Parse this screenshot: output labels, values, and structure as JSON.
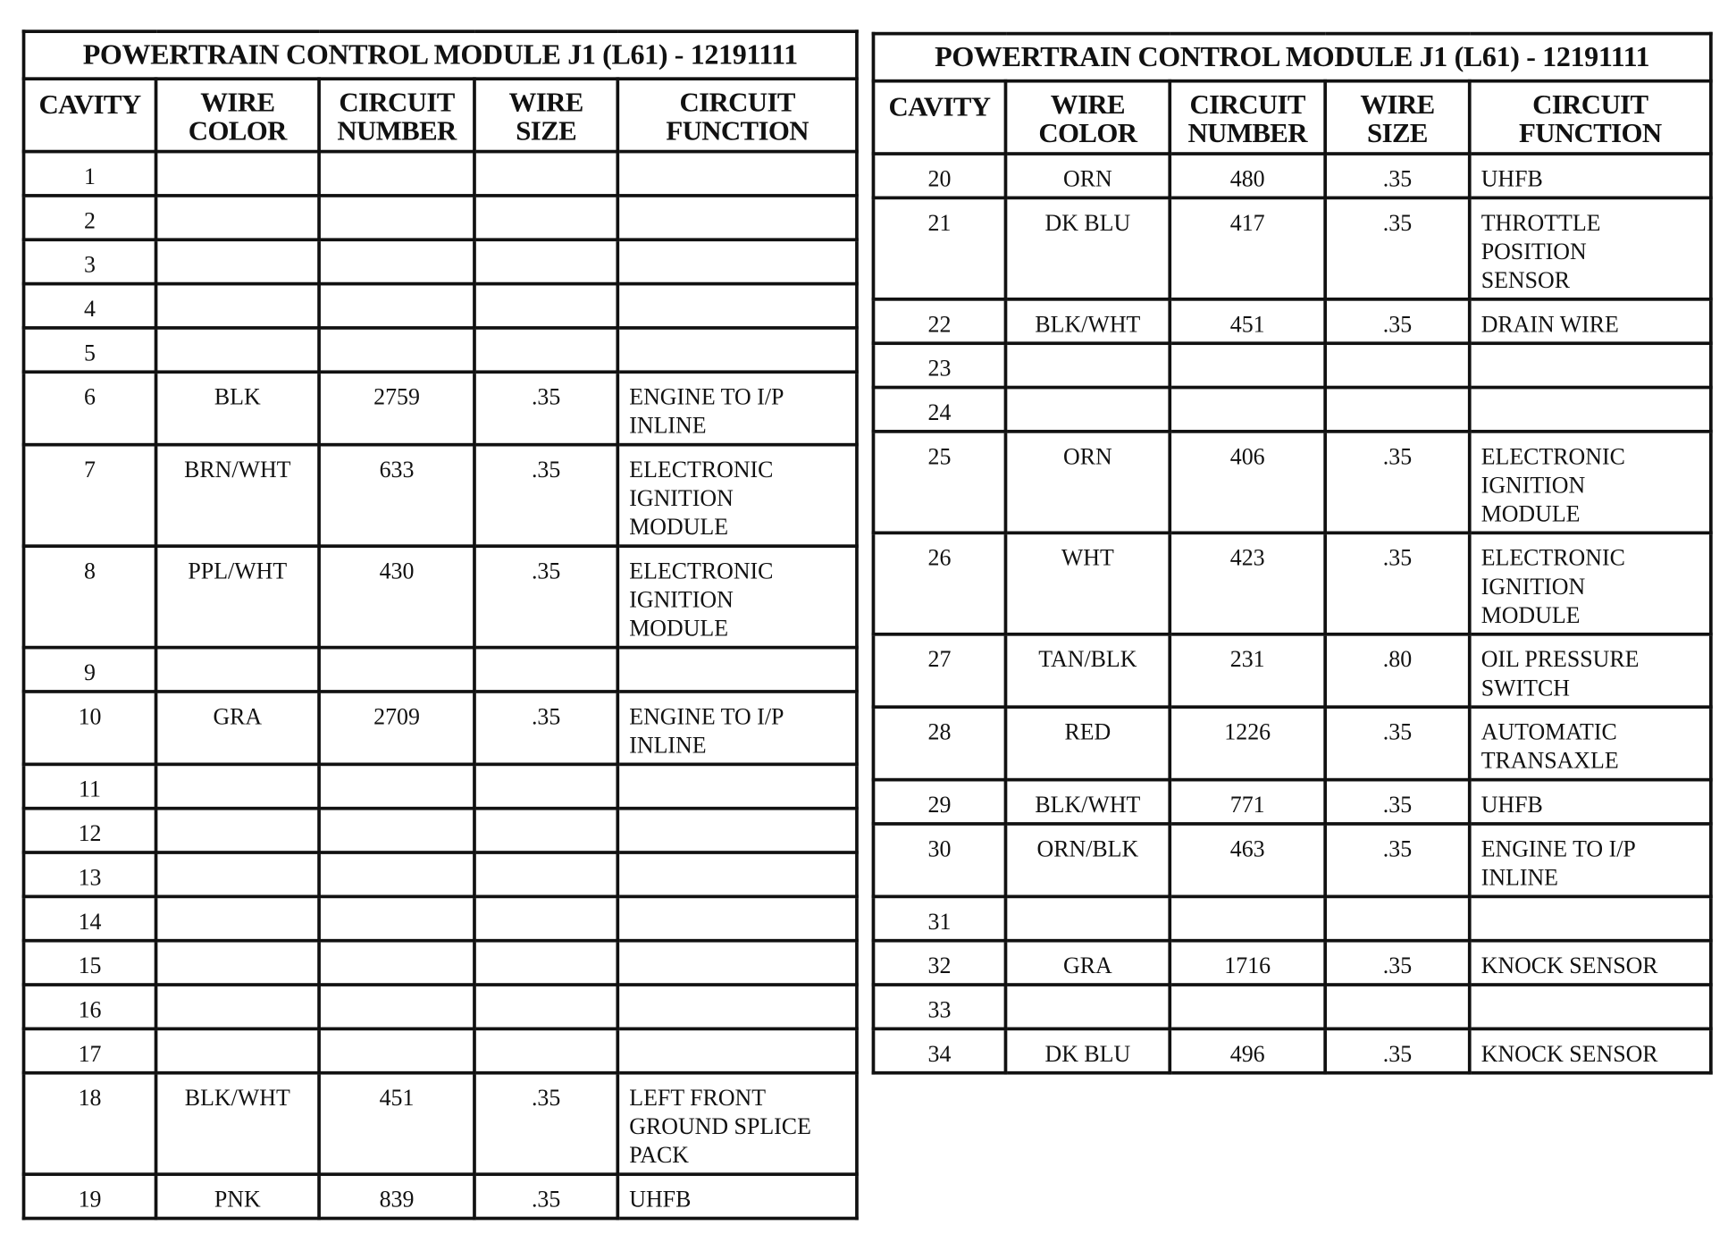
{
  "tables": [
    {
      "title": "POWERTRAIN CONTROL MODULE J1 (L61) - 12191111",
      "headers": [
        "CAVITY",
        "WIRE\nCOLOR",
        "CIRCUIT\nNUMBER",
        "WIRE\nSIZE",
        "CIRCUIT\nFUNCTION"
      ],
      "rows": [
        {
          "cavity": "1",
          "wire_color": "",
          "circuit_number": "",
          "wire_size": "",
          "circuit_function": ""
        },
        {
          "cavity": "2",
          "wire_color": "",
          "circuit_number": "",
          "wire_size": "",
          "circuit_function": ""
        },
        {
          "cavity": "3",
          "wire_color": "",
          "circuit_number": "",
          "wire_size": "",
          "circuit_function": ""
        },
        {
          "cavity": "4",
          "wire_color": "",
          "circuit_number": "",
          "wire_size": "",
          "circuit_function": ""
        },
        {
          "cavity": "5",
          "wire_color": "",
          "circuit_number": "",
          "wire_size": "",
          "circuit_function": ""
        },
        {
          "cavity": "6",
          "wire_color": "BLK",
          "circuit_number": "2759",
          "wire_size": ".35",
          "circuit_function": "ENGINE TO I/P\nINLINE"
        },
        {
          "cavity": "7",
          "wire_color": "BRN/WHT",
          "circuit_number": "633",
          "wire_size": ".35",
          "circuit_function": "ELECTRONIC\nIGNITION\nMODULE"
        },
        {
          "cavity": "8",
          "wire_color": "PPL/WHT",
          "circuit_number": "430",
          "wire_size": ".35",
          "circuit_function": "ELECTRONIC\nIGNITION\nMODULE"
        },
        {
          "cavity": "9",
          "wire_color": "",
          "circuit_number": "",
          "wire_size": "",
          "circuit_function": ""
        },
        {
          "cavity": "10",
          "wire_color": "GRA",
          "circuit_number": "2709",
          "wire_size": ".35",
          "circuit_function": "ENGINE TO I/P\nINLINE"
        },
        {
          "cavity": "11",
          "wire_color": "",
          "circuit_number": "",
          "wire_size": "",
          "circuit_function": ""
        },
        {
          "cavity": "12",
          "wire_color": "",
          "circuit_number": "",
          "wire_size": "",
          "circuit_function": ""
        },
        {
          "cavity": "13",
          "wire_color": "",
          "circuit_number": "",
          "wire_size": "",
          "circuit_function": ""
        },
        {
          "cavity": "14",
          "wire_color": "",
          "circuit_number": "",
          "wire_size": "",
          "circuit_function": ""
        },
        {
          "cavity": "15",
          "wire_color": "",
          "circuit_number": "",
          "wire_size": "",
          "circuit_function": ""
        },
        {
          "cavity": "16",
          "wire_color": "",
          "circuit_number": "",
          "wire_size": "",
          "circuit_function": ""
        },
        {
          "cavity": "17",
          "wire_color": "",
          "circuit_number": "",
          "wire_size": "",
          "circuit_function": ""
        },
        {
          "cavity": "18",
          "wire_color": "BLK/WHT",
          "circuit_number": "451",
          "wire_size": ".35",
          "circuit_function": "LEFT FRONT\nGROUND SPLICE\nPACK"
        },
        {
          "cavity": "19",
          "wire_color": "PNK",
          "circuit_number": "839",
          "wire_size": ".35",
          "circuit_function": "UHFB"
        }
      ]
    },
    {
      "title": "POWERTRAIN CONTROL MODULE J1 (L61) - 12191111",
      "headers": [
        "CAVITY",
        "WIRE\nCOLOR",
        "CIRCUIT\nNUMBER",
        "WIRE\nSIZE",
        "CIRCUIT\nFUNCTION"
      ],
      "rows": [
        {
          "cavity": "20",
          "wire_color": "ORN",
          "circuit_number": "480",
          "wire_size": ".35",
          "circuit_function": "UHFB"
        },
        {
          "cavity": "21",
          "wire_color": "DK BLU",
          "circuit_number": "417",
          "wire_size": ".35",
          "circuit_function": "THROTTLE\nPOSITION\nSENSOR"
        },
        {
          "cavity": "22",
          "wire_color": "BLK/WHT",
          "circuit_number": "451",
          "wire_size": ".35",
          "circuit_function": "DRAIN WIRE"
        },
        {
          "cavity": "23",
          "wire_color": "",
          "circuit_number": "",
          "wire_size": "",
          "circuit_function": ""
        },
        {
          "cavity": "24",
          "wire_color": "",
          "circuit_number": "",
          "wire_size": "",
          "circuit_function": ""
        },
        {
          "cavity": "25",
          "wire_color": "ORN",
          "circuit_number": "406",
          "wire_size": ".35",
          "circuit_function": "ELECTRONIC\nIGNITION\nMODULE"
        },
        {
          "cavity": "26",
          "wire_color": "WHT",
          "circuit_number": "423",
          "wire_size": ".35",
          "circuit_function": "ELECTRONIC\nIGNITION\nMODULE"
        },
        {
          "cavity": "27",
          "wire_color": "TAN/BLK",
          "circuit_number": "231",
          "wire_size": ".80",
          "circuit_function": "OIL PRESSURE\nSWITCH"
        },
        {
          "cavity": "28",
          "wire_color": "RED",
          "circuit_number": "1226",
          "wire_size": ".35",
          "circuit_function": "AUTOMATIC\nTRANSAXLE"
        },
        {
          "cavity": "29",
          "wire_color": "BLK/WHT",
          "circuit_number": "771",
          "wire_size": ".35",
          "circuit_function": "UHFB"
        },
        {
          "cavity": "30",
          "wire_color": "ORN/BLK",
          "circuit_number": "463",
          "wire_size": ".35",
          "circuit_function": "ENGINE TO I/P\nINLINE"
        },
        {
          "cavity": "31",
          "wire_color": "",
          "circuit_number": "",
          "wire_size": "",
          "circuit_function": ""
        },
        {
          "cavity": "32",
          "wire_color": "GRA",
          "circuit_number": "1716",
          "wire_size": ".35",
          "circuit_function": "KNOCK SENSOR"
        },
        {
          "cavity": "33",
          "wire_color": "",
          "circuit_number": "",
          "wire_size": "",
          "circuit_function": ""
        },
        {
          "cavity": "34",
          "wire_color": "DK BLU",
          "circuit_number": "496",
          "wire_size": ".35",
          "circuit_function": "KNOCK SENSOR"
        }
      ]
    }
  ]
}
